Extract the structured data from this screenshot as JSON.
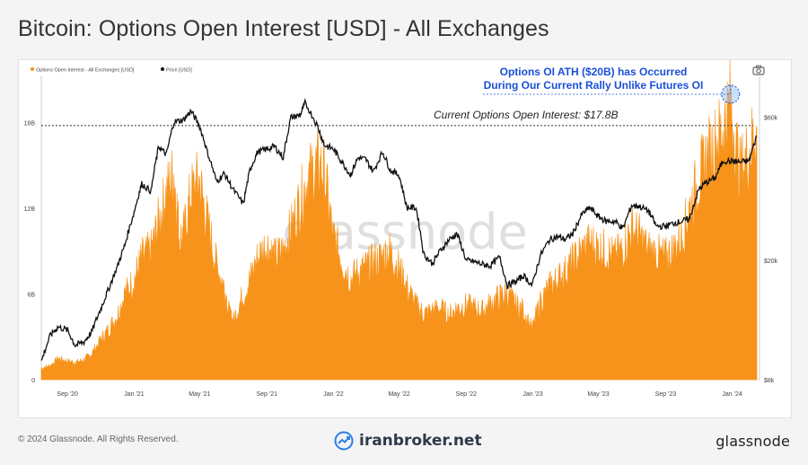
{
  "header": {
    "title": "Bitcoin: Options Open Interest [USD] - All Exchanges"
  },
  "footer": {
    "copyright": "© 2024 Glassnode. All Rights Reserved.",
    "brand": "iranbroker.net",
    "logo": "glassnode"
  },
  "watermark": "glassnode",
  "colors": {
    "oi_fill": "#f7931a",
    "price_line": "#111111",
    "annotation_blue": "#1a4fd6",
    "dotted_line": "#333333"
  },
  "chart_data": {
    "type": "area",
    "legend": {
      "position": "top-left",
      "entries": [
        {
          "label": "Options Open Interest - All Exchanges [USD]",
          "color": "#f7931a"
        },
        {
          "label": "Price [USD]",
          "color": "#111111"
        }
      ]
    },
    "x_ticks": [
      "Sep '20",
      "Jan '21",
      "May '21",
      "Sep '21",
      "Jan '22",
      "May '22",
      "Sep '22",
      "Jan '23",
      "May '23",
      "Sep '23",
      "Jan '24"
    ],
    "y_left_ticks": [
      "0",
      "6B",
      "12B",
      "18B"
    ],
    "y_left_range": [
      0,
      21
    ],
    "y_right_ticks": [
      "$8k",
      "$20k",
      "$60k"
    ],
    "y_right_range": [
      8000,
      80000
    ],
    "y_right_scale": "log",
    "grid": false,
    "annotations": [
      {
        "text": "Current Options Open Interest: $17.8B",
        "value": 17.8
      },
      {
        "text_line1": "Options OI ATH ($20B) has Occurred",
        "text_line2": "During Our Current Rally Unlike Futures OI",
        "value": 20
      }
    ],
    "series": [
      {
        "name": "Options Open Interest - All Exchanges [USD]",
        "unit": "USD billions",
        "x": [
          "2020-07-15",
          "2020-08-01",
          "2020-08-15",
          "2020-09-01",
          "2020-09-15",
          "2020-10-01",
          "2020-10-15",
          "2020-11-01",
          "2020-11-15",
          "2020-12-01",
          "2020-12-15",
          "2021-01-01",
          "2021-01-15",
          "2021-02-01",
          "2021-02-15",
          "2021-03-01",
          "2021-03-15",
          "2021-03-26",
          "2021-04-01",
          "2021-04-15",
          "2021-04-30",
          "2021-05-15",
          "2021-06-01",
          "2021-06-15",
          "2021-06-25",
          "2021-07-01",
          "2021-07-15",
          "2021-08-01",
          "2021-08-15",
          "2021-09-01",
          "2021-09-15",
          "2021-10-01",
          "2021-10-15",
          "2021-11-01",
          "2021-11-15",
          "2021-12-01",
          "2021-12-15",
          "2021-12-31",
          "2022-01-15",
          "2022-02-01",
          "2022-02-15",
          "2022-03-01",
          "2022-03-15",
          "2022-04-01",
          "2022-04-15",
          "2022-05-01",
          "2022-05-15",
          "2022-06-01",
          "2022-06-15",
          "2022-07-01",
          "2022-07-15",
          "2022-08-01",
          "2022-08-15",
          "2022-09-01",
          "2022-09-15",
          "2022-10-01",
          "2022-10-15",
          "2022-11-01",
          "2022-11-15",
          "2022-12-01",
          "2022-12-15",
          "2022-12-31",
          "2023-01-15",
          "2023-02-01",
          "2023-02-15",
          "2023-03-01",
          "2023-03-15",
          "2023-04-01",
          "2023-04-15",
          "2023-05-01",
          "2023-05-15",
          "2023-06-01",
          "2023-06-15",
          "2023-07-01",
          "2023-07-15",
          "2023-08-01",
          "2023-08-15",
          "2023-09-01",
          "2023-09-15",
          "2023-10-01",
          "2023-10-15",
          "2023-11-01",
          "2023-11-15",
          "2023-12-01",
          "2023-12-15",
          "2023-12-29",
          "2024-01-15",
          "2024-02-01",
          "2024-02-15"
        ],
        "values": [
          0.8,
          1.0,
          1.5,
          1.3,
          1.2,
          1.4,
          1.8,
          2.8,
          3.5,
          4.5,
          6.0,
          7.0,
          8.5,
          9.0,
          11.0,
          13.0,
          14.5,
          9.5,
          10.0,
          13.0,
          14.0,
          11.0,
          8.0,
          6.5,
          4.5,
          4.0,
          5.5,
          7.0,
          8.5,
          9.5,
          8.5,
          9.0,
          10.5,
          12.5,
          14.0,
          15.0,
          14.5,
          10.0,
          8.5,
          7.0,
          7.5,
          7.8,
          8.2,
          8.6,
          9.0,
          7.8,
          6.5,
          5.2,
          4.6,
          4.8,
          5.0,
          4.5,
          5.0,
          5.2,
          5.0,
          4.8,
          5.3,
          5.8,
          6.0,
          5.2,
          4.8,
          3.5,
          5.5,
          6.5,
          7.0,
          7.5,
          8.2,
          9.0,
          9.5,
          9.2,
          9.0,
          8.5,
          9.2,
          10.5,
          10.0,
          9.0,
          8.8,
          8.5,
          9.0,
          10.0,
          12.0,
          14.0,
          15.5,
          16.5,
          17.5,
          19.5,
          14.5,
          16.0,
          17.8
        ]
      },
      {
        "name": "Price [USD]",
        "unit": "USD",
        "x": [
          "2020-07-15",
          "2020-08-01",
          "2020-08-15",
          "2020-09-01",
          "2020-09-15",
          "2020-10-01",
          "2020-10-15",
          "2020-11-01",
          "2020-11-15",
          "2020-12-01",
          "2020-12-15",
          "2021-01-01",
          "2021-01-15",
          "2021-02-01",
          "2021-02-15",
          "2021-03-01",
          "2021-03-15",
          "2021-04-01",
          "2021-04-15",
          "2021-05-01",
          "2021-05-15",
          "2021-06-01",
          "2021-06-15",
          "2021-07-01",
          "2021-07-20",
          "2021-08-01",
          "2021-08-15",
          "2021-09-01",
          "2021-09-15",
          "2021-10-01",
          "2021-10-15",
          "2021-11-01",
          "2021-11-10",
          "2021-12-01",
          "2021-12-15",
          "2022-01-01",
          "2022-01-15",
          "2022-02-01",
          "2022-02-15",
          "2022-03-01",
          "2022-03-15",
          "2022-04-01",
          "2022-04-15",
          "2022-05-01",
          "2022-05-15",
          "2022-06-01",
          "2022-06-15",
          "2022-07-01",
          "2022-07-15",
          "2022-08-01",
          "2022-08-15",
          "2022-09-01",
          "2022-09-15",
          "2022-10-01",
          "2022-10-15",
          "2022-11-01",
          "2022-11-15",
          "2022-12-01",
          "2022-12-15",
          "2022-12-31",
          "2023-01-15",
          "2023-02-01",
          "2023-02-15",
          "2023-03-01",
          "2023-03-15",
          "2023-04-01",
          "2023-04-15",
          "2023-05-01",
          "2023-05-15",
          "2023-06-01",
          "2023-06-15",
          "2023-07-01",
          "2023-07-15",
          "2023-08-01",
          "2023-08-15",
          "2023-09-01",
          "2023-09-15",
          "2023-10-01",
          "2023-10-15",
          "2023-11-01",
          "2023-11-15",
          "2023-12-01",
          "2023-12-15",
          "2024-01-01",
          "2024-01-15",
          "2024-02-01",
          "2024-02-15"
        ],
        "values": [
          9200,
          11300,
          12000,
          11700,
          10400,
          10700,
          11500,
          13800,
          16000,
          19000,
          22500,
          29000,
          36000,
          34000,
          48000,
          45000,
          58000,
          58800,
          63000,
          56000,
          46000,
          36500,
          39000,
          34500,
          30800,
          40000,
          46000,
          47000,
          48000,
          44000,
          60000,
          61000,
          67000,
          57000,
          48500,
          47000,
          43000,
          38500,
          44000,
          43500,
          39500,
          46000,
          40000,
          38500,
          30000,
          30000,
          21000,
          19500,
          21500,
          23500,
          24500,
          20000,
          19800,
          19400,
          19200,
          20500,
          16500,
          17000,
          17800,
          16500,
          20800,
          23500,
          24000,
          23500,
          24500,
          28500,
          30000,
          28000,
          27000,
          27000,
          25500,
          30500,
          30300,
          29200,
          26000,
          26000,
          26600,
          27000,
          27500,
          34500,
          36500,
          37700,
          43000,
          42800,
          42500,
          43000,
          52000
        ]
      }
    ]
  }
}
